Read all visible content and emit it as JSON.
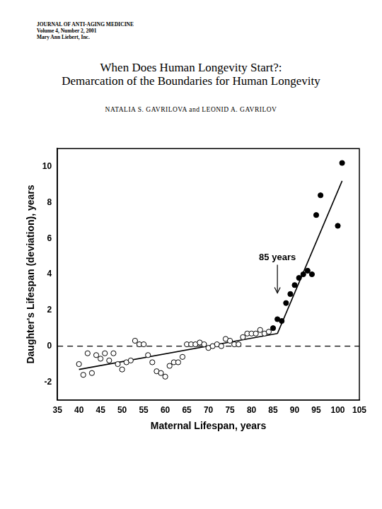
{
  "header": [
    "JOURNAL OF ANTI-AGING MEDICINE",
    "Volume 4, Number 2, 2001",
    "Mary Ann Liebert, Inc."
  ],
  "title": [
    "When Does Human Longevity Start?:",
    "Demarcation of the Boundaries for Human Longevity"
  ],
  "authors": "NATALIA S. GAVRILOVA and LEONID A. GAVRILOV",
  "chart_data": {
    "type": "scatter",
    "x_label": "Maternal Lifespan, years",
    "y_label": "Daughter's Lifespan (deviation), years",
    "xlim": [
      35,
      105
    ],
    "xticks": [
      35,
      40,
      45,
      50,
      55,
      60,
      65,
      70,
      75,
      80,
      85,
      90,
      95,
      100,
      105
    ],
    "ylim": [
      -3,
      11
    ],
    "yticks": [
      -2,
      0,
      2,
      4,
      6,
      8,
      10
    ],
    "grid": false,
    "series": [
      {
        "type": "scatter",
        "marker": "open_circle",
        "line_style": "none",
        "color": "#000000",
        "x": [
          40,
          41,
          42,
          43,
          44,
          45,
          46,
          47,
          48,
          49,
          50,
          51,
          52,
          53,
          54,
          55,
          56,
          57,
          58,
          59,
          60,
          61,
          62,
          63,
          64,
          65,
          66,
          67,
          68,
          69,
          70,
          71,
          72,
          73,
          74,
          75,
          76,
          77,
          78,
          79,
          80,
          81,
          82,
          83,
          84
        ],
        "values": [
          -1.0,
          -1.6,
          -0.4,
          -1.5,
          -0.5,
          -0.7,
          -0.4,
          -0.8,
          -0.4,
          -1.0,
          -1.3,
          -0.9,
          -0.8,
          0.3,
          0.1,
          0.1,
          -0.5,
          -0.9,
          -1.4,
          -1.5,
          -1.7,
          -1.1,
          -0.9,
          -0.9,
          -0.6,
          0.1,
          0.1,
          0.1,
          0.2,
          0.1,
          -0.1,
          0.0,
          0.1,
          0.0,
          0.4,
          0.3,
          0.1,
          0.1,
          0.5,
          0.7,
          0.7,
          0.7,
          0.9,
          0.7,
          0.8
        ]
      },
      {
        "type": "scatter",
        "marker": "filled_circle",
        "line_style": "none",
        "color": "#000000",
        "x": [
          85,
          86,
          87,
          88,
          89,
          90,
          91,
          92,
          93,
          94,
          95,
          96,
          100,
          101
        ],
        "values": [
          1.0,
          1.5,
          1.4,
          2.4,
          2.9,
          3.4,
          3.8,
          4.0,
          4.2,
          4.0,
          7.3,
          8.4,
          6.7,
          10.2
        ]
      },
      {
        "type": "line",
        "marker": "none",
        "line_style": "solid",
        "color": "#000000",
        "x": [
          40,
          86
        ],
        "values": [
          -1.3,
          0.7
        ]
      },
      {
        "type": "line",
        "marker": "none",
        "line_style": "solid",
        "color": "#000000",
        "x": [
          86,
          101
        ],
        "values": [
          0.7,
          9.2
        ]
      },
      {
        "type": "line",
        "marker": "none",
        "line_style": "dashed",
        "color": "#000000",
        "x": [
          35,
          105
        ],
        "values": [
          0,
          0
        ]
      }
    ],
    "annotations": [
      {
        "text": "85 years",
        "x": 86,
        "y": 2.8
      }
    ]
  }
}
